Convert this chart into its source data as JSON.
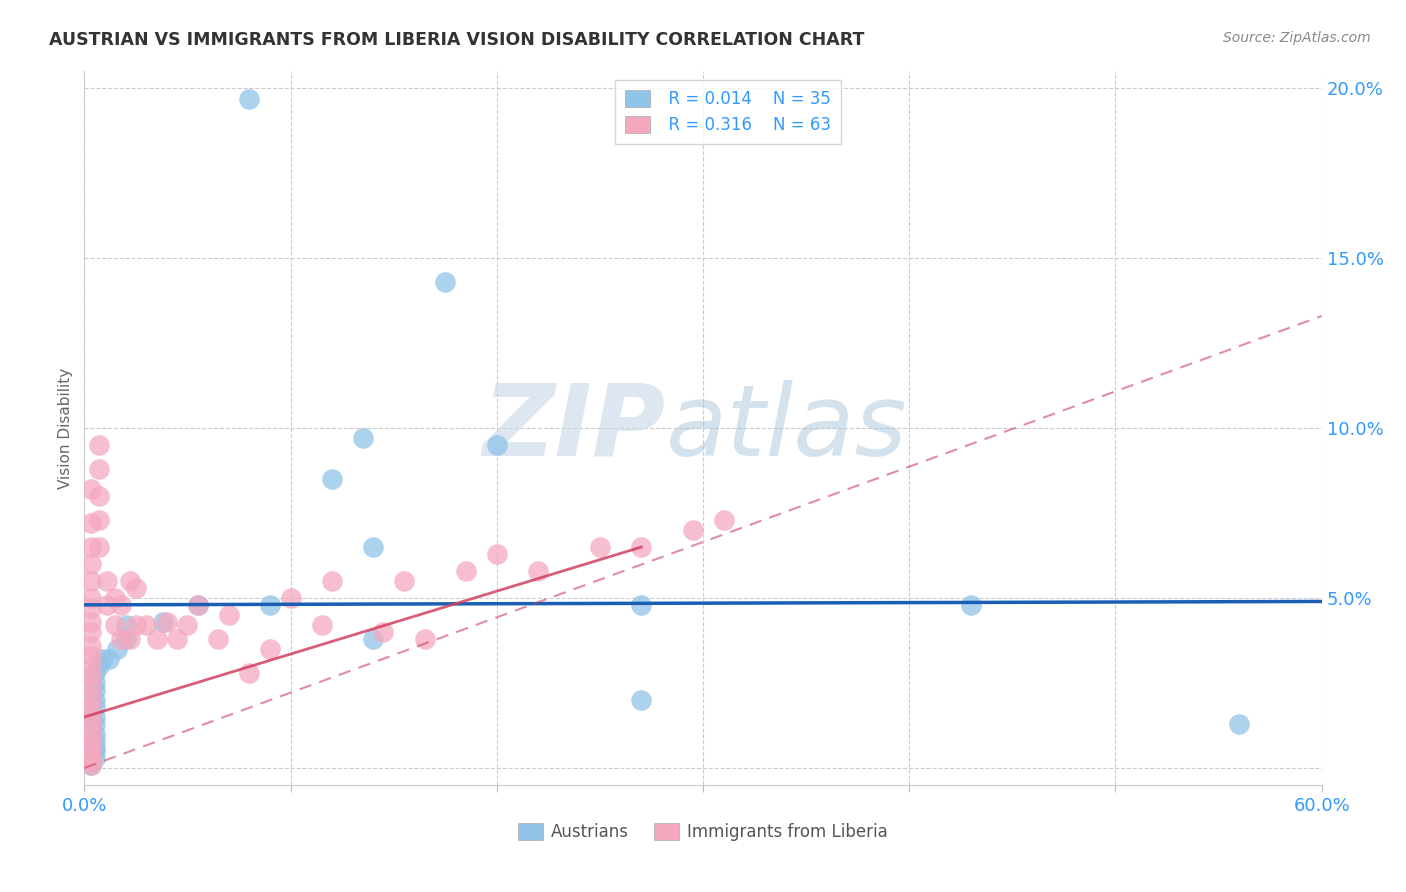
{
  "title": "AUSTRIAN VS IMMIGRANTS FROM LIBERIA VISION DISABILITY CORRELATION CHART",
  "source": "Source: ZipAtlas.com",
  "ylabel": "Vision Disability",
  "xlim": [
    0.0,
    0.6
  ],
  "ylim": [
    -0.005,
    0.205
  ],
  "xticks": [
    0.0,
    0.1,
    0.2,
    0.3,
    0.4,
    0.5,
    0.6
  ],
  "yticks": [
    0.0,
    0.05,
    0.1,
    0.15,
    0.2
  ],
  "xtick_labels": [
    "0.0%",
    "",
    "",
    "",
    "",
    "",
    "60.0%"
  ],
  "ytick_labels": [
    "",
    "5.0%",
    "10.0%",
    "15.0%",
    "20.0%"
  ],
  "legend_austrians": "Austrians",
  "legend_liberia": "Immigrants from Liberia",
  "R_austrians": "R = 0.014",
  "N_austrians": "N = 35",
  "R_liberia": "R = 0.316",
  "N_liberia": "N = 63",
  "austrians_color": "#90C4E8",
  "liberia_color": "#F4A8BE",
  "austrians_line_color": "#1A5FB4",
  "liberia_line_color": "#D04060",
  "aus_line_x0": 0.0,
  "aus_line_y0": 0.048,
  "aus_line_x1": 0.6,
  "aus_line_y1": 0.049,
  "lib_line_x0": 0.0,
  "lib_line_y0": 0.0,
  "lib_line_x1": 0.6,
  "lib_line_y1": 0.133,
  "austrians_x": [
    0.08,
    0.175,
    0.2,
    0.135,
    0.12,
    0.09,
    0.055,
    0.038,
    0.02,
    0.02,
    0.016,
    0.012,
    0.009,
    0.007,
    0.005,
    0.005,
    0.005,
    0.005,
    0.005,
    0.005,
    0.005,
    0.005,
    0.005,
    0.005,
    0.005,
    0.005,
    0.003,
    0.003,
    0.003,
    0.14,
    0.14,
    0.27,
    0.27,
    0.43,
    0.56
  ],
  "austrians_y": [
    0.197,
    0.143,
    0.095,
    0.097,
    0.085,
    0.048,
    0.048,
    0.043,
    0.042,
    0.038,
    0.035,
    0.032,
    0.032,
    0.03,
    0.028,
    0.025,
    0.023,
    0.02,
    0.018,
    0.015,
    0.013,
    0.01,
    0.008,
    0.006,
    0.005,
    0.003,
    0.003,
    0.002,
    0.001,
    0.065,
    0.038,
    0.048,
    0.02,
    0.048,
    0.013
  ],
  "liberia_x": [
    0.003,
    0.003,
    0.003,
    0.003,
    0.003,
    0.003,
    0.003,
    0.003,
    0.003,
    0.003,
    0.003,
    0.003,
    0.003,
    0.003,
    0.003,
    0.003,
    0.003,
    0.003,
    0.003,
    0.003,
    0.003,
    0.003,
    0.003,
    0.003,
    0.003,
    0.007,
    0.007,
    0.007,
    0.007,
    0.007,
    0.011,
    0.011,
    0.015,
    0.015,
    0.018,
    0.018,
    0.022,
    0.022,
    0.025,
    0.025,
    0.03,
    0.035,
    0.04,
    0.045,
    0.05,
    0.055,
    0.065,
    0.07,
    0.08,
    0.09,
    0.1,
    0.115,
    0.12,
    0.145,
    0.155,
    0.165,
    0.185,
    0.2,
    0.22,
    0.25,
    0.27,
    0.295,
    0.31
  ],
  "liberia_y": [
    0.082,
    0.072,
    0.065,
    0.06,
    0.055,
    0.05,
    0.047,
    0.043,
    0.04,
    0.036,
    0.033,
    0.03,
    0.027,
    0.024,
    0.021,
    0.018,
    0.015,
    0.013,
    0.01,
    0.008,
    0.006,
    0.004,
    0.003,
    0.002,
    0.001,
    0.095,
    0.088,
    0.08,
    0.073,
    0.065,
    0.055,
    0.048,
    0.05,
    0.042,
    0.048,
    0.038,
    0.055,
    0.038,
    0.053,
    0.042,
    0.042,
    0.038,
    0.043,
    0.038,
    0.042,
    0.048,
    0.038,
    0.045,
    0.028,
    0.035,
    0.05,
    0.042,
    0.055,
    0.04,
    0.055,
    0.038,
    0.058,
    0.063,
    0.058,
    0.065,
    0.065,
    0.07,
    0.073
  ],
  "watermark_zip": "ZIP",
  "watermark_atlas": "atlas",
  "background_color": "#FFFFFF",
  "grid_color": "#CCCCCC"
}
